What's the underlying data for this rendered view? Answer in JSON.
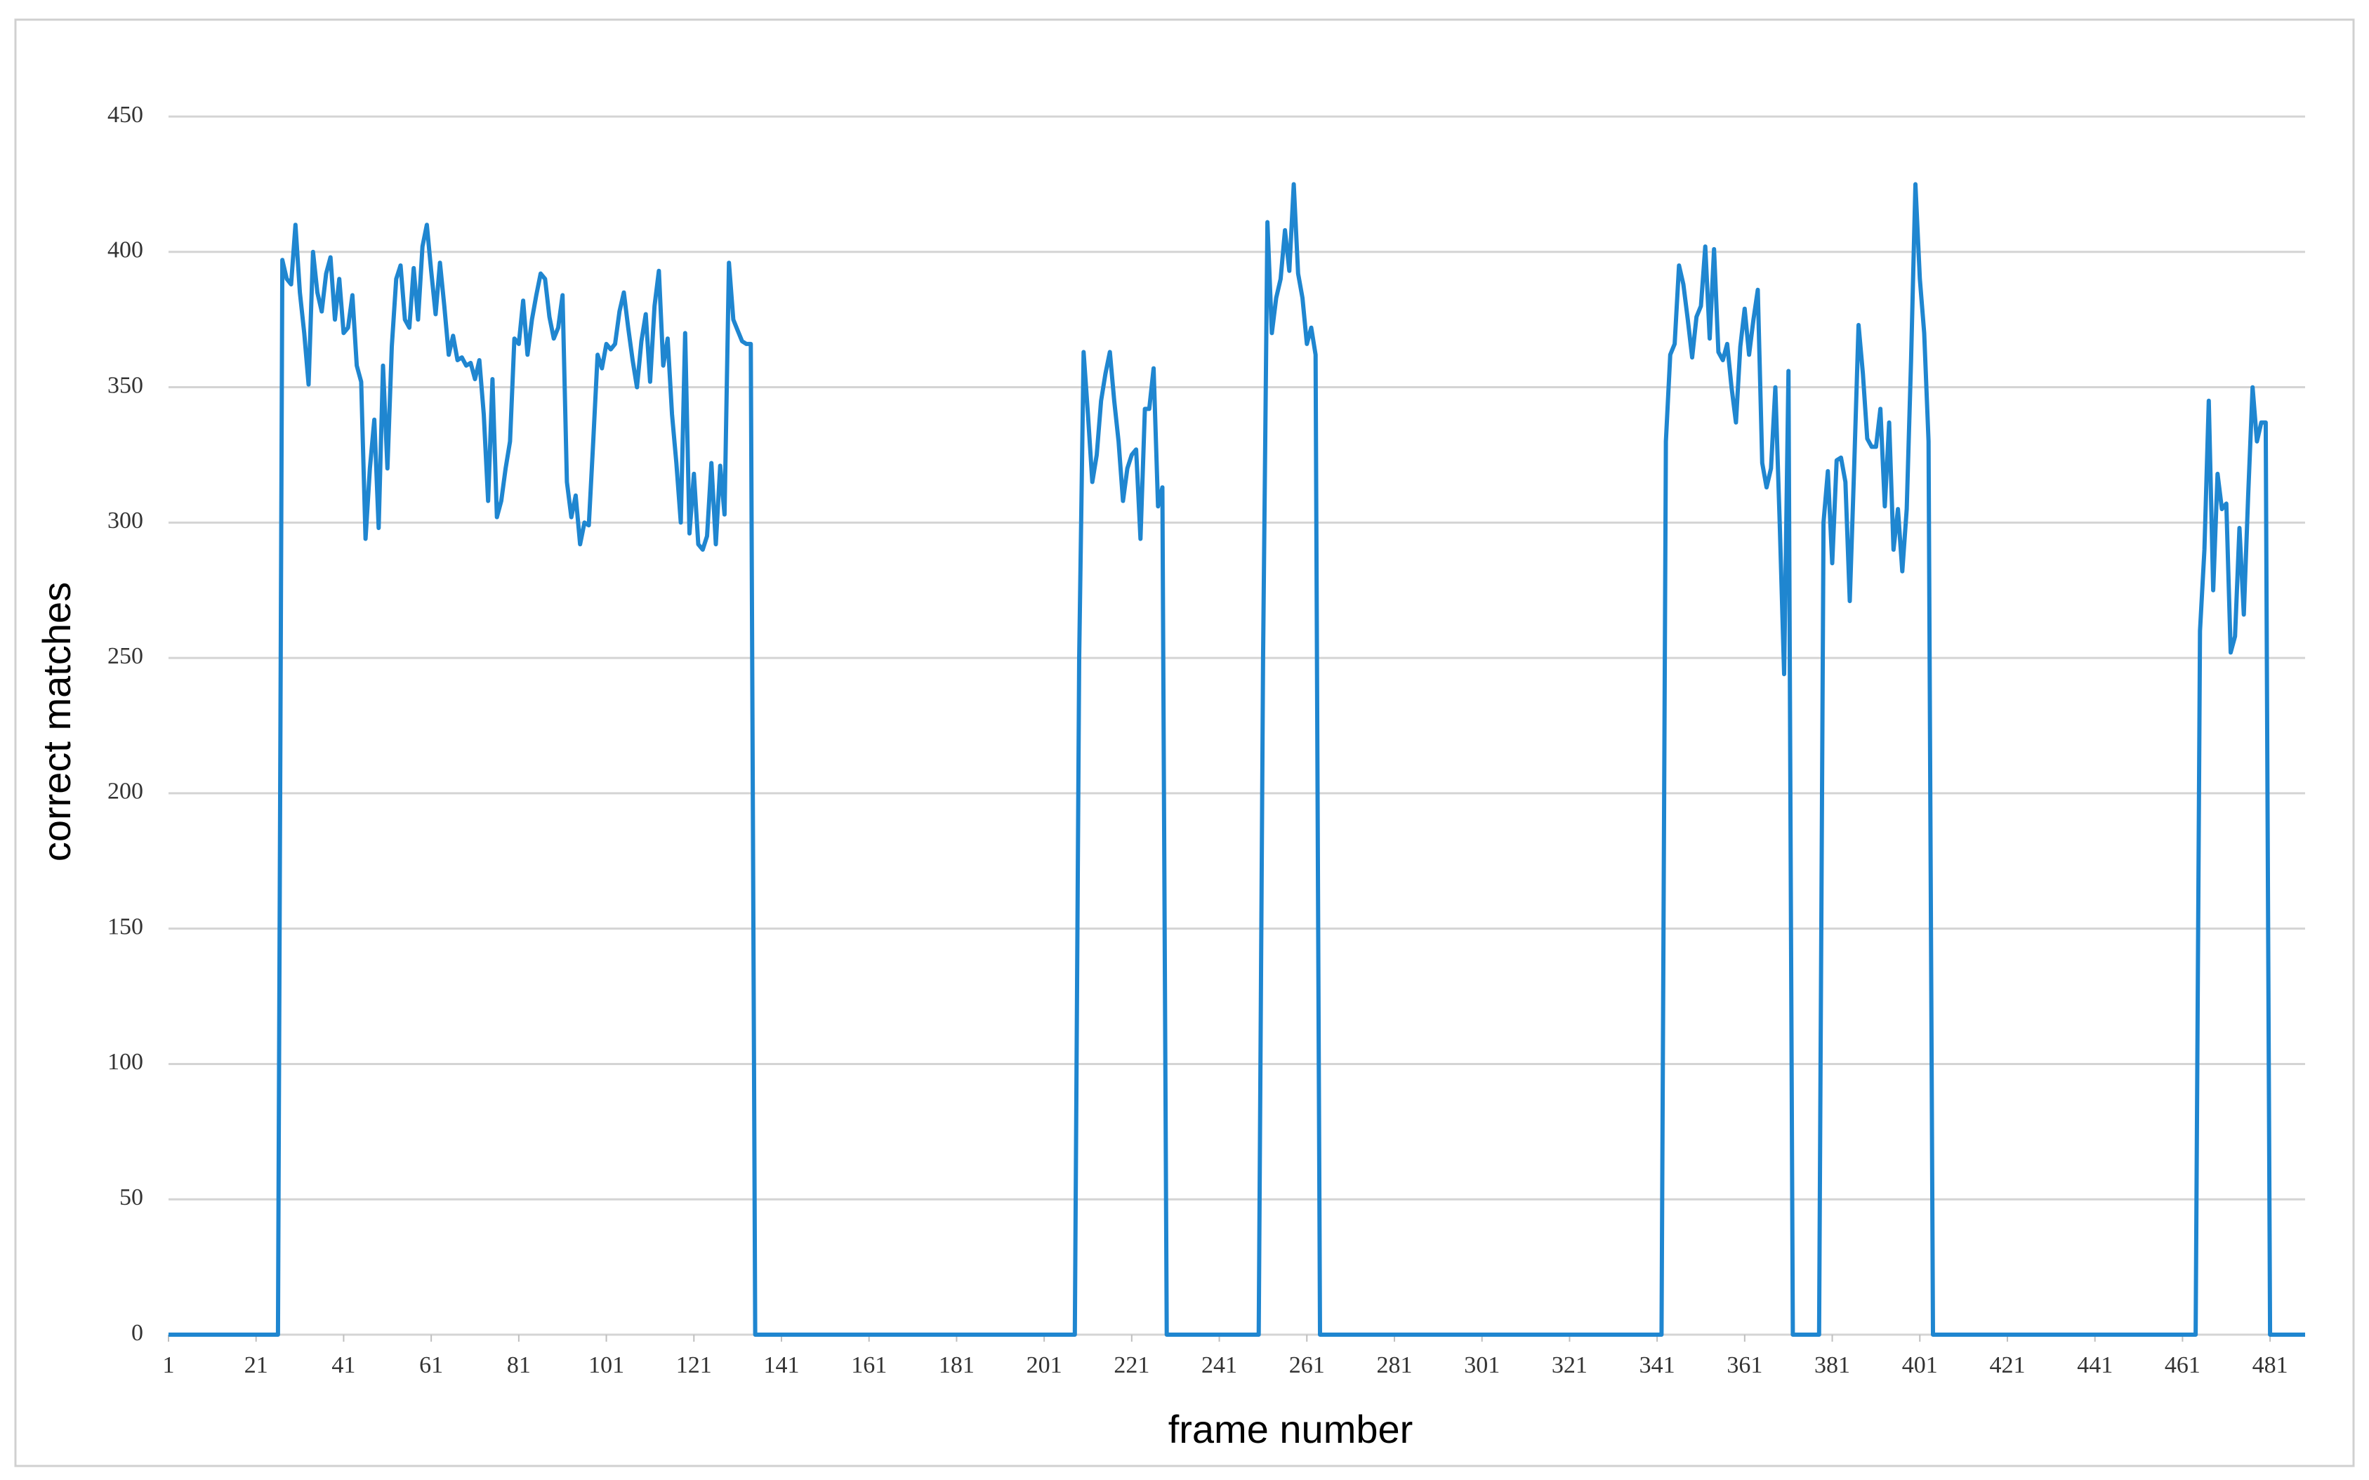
{
  "chart_data": {
    "type": "line",
    "xlabel": "frame number",
    "ylabel": "correct matches",
    "xlim": [
      1,
      489
    ],
    "ylim": [
      0,
      450
    ],
    "xticks": [
      1,
      21,
      41,
      61,
      81,
      101,
      121,
      141,
      161,
      181,
      201,
      221,
      241,
      261,
      281,
      301,
      321,
      341,
      361,
      381,
      401,
      421,
      441,
      461,
      481
    ],
    "yticks": [
      0,
      50,
      100,
      150,
      200,
      250,
      300,
      350,
      400,
      450
    ],
    "grid": true,
    "x": [
      1,
      26,
      27,
      28,
      29,
      30,
      31,
      32,
      33,
      34,
      35,
      36,
      37,
      38,
      39,
      40,
      41,
      42,
      43,
      44,
      45,
      46,
      47,
      48,
      49,
      50,
      51,
      52,
      53,
      54,
      55,
      56,
      57,
      58,
      59,
      60,
      61,
      62,
      63,
      64,
      65,
      66,
      67,
      68,
      69,
      70,
      71,
      72,
      73,
      74,
      75,
      76,
      77,
      78,
      79,
      80,
      81,
      82,
      83,
      84,
      85,
      86,
      87,
      88,
      89,
      90,
      91,
      92,
      93,
      94,
      95,
      96,
      97,
      98,
      99,
      100,
      101,
      102,
      103,
      104,
      105,
      106,
      107,
      108,
      109,
      110,
      111,
      112,
      113,
      114,
      115,
      116,
      117,
      118,
      119,
      120,
      121,
      122,
      123,
      124,
      125,
      126,
      127,
      128,
      129,
      130,
      131,
      132,
      133,
      134,
      135,
      208,
      209,
      210,
      211,
      212,
      213,
      214,
      215,
      216,
      217,
      218,
      219,
      220,
      221,
      222,
      223,
      224,
      225,
      226,
      227,
      228,
      229,
      250,
      251,
      252,
      253,
      254,
      255,
      256,
      257,
      258,
      259,
      260,
      261,
      262,
      263,
      264,
      342,
      343,
      344,
      345,
      346,
      347,
      348,
      349,
      350,
      351,
      352,
      353,
      354,
      355,
      356,
      357,
      358,
      359,
      360,
      361,
      362,
      363,
      364,
      365,
      366,
      367,
      368,
      369,
      370,
      371,
      372,
      378,
      379,
      380,
      381,
      382,
      383,
      384,
      385,
      386,
      387,
      388,
      389,
      390,
      391,
      392,
      393,
      394,
      395,
      396,
      397,
      398,
      399,
      400,
      401,
      402,
      403,
      404,
      464,
      465,
      466,
      467,
      468,
      469,
      470,
      471,
      472,
      473,
      474,
      475,
      476,
      477,
      478,
      479,
      480,
      481,
      489
    ],
    "series": [
      {
        "color": "#1f86d0",
        "values": [
          0,
          0,
          397,
          390,
          388,
          410,
          385,
          370,
          351,
          400,
          385,
          378,
          392,
          398,
          375,
          390,
          370,
          372,
          384,
          358,
          352,
          294,
          320,
          338,
          298,
          358,
          320,
          365,
          390,
          395,
          375,
          372,
          394,
          375,
          402,
          410,
          393,
          377,
          396,
          380,
          362,
          369,
          360,
          361,
          358,
          359,
          353,
          360,
          340,
          308,
          353,
          302,
          308,
          320,
          330,
          368,
          366,
          382,
          362,
          375,
          384,
          392,
          390,
          376,
          368,
          372,
          384,
          315,
          302,
          310,
          292,
          300,
          299,
          330,
          362,
          357,
          366,
          364,
          366,
          378,
          385,
          372,
          360,
          350,
          367,
          377,
          352,
          380,
          393,
          358,
          368,
          340,
          322,
          300,
          370,
          296,
          318,
          292,
          290,
          295,
          322,
          292,
          321,
          303,
          396,
          375,
          371,
          367,
          366,
          366,
          0,
          0,
          250,
          363,
          340,
          315,
          325,
          345,
          355,
          363,
          345,
          330,
          308,
          320,
          325,
          327,
          294,
          342,
          342,
          357,
          306,
          313,
          0,
          0,
          250,
          411,
          370,
          383,
          390,
          408,
          393,
          425,
          392,
          383,
          366,
          372,
          362,
          0,
          0,
          330,
          362,
          366,
          395,
          388,
          375,
          361,
          376,
          380,
          402,
          368,
          401,
          363,
          360,
          366,
          350,
          337,
          365,
          379,
          362,
          375,
          386,
          322,
          313,
          320,
          350,
          300,
          244,
          356,
          0,
          0,
          300,
          319,
          285,
          323,
          324,
          315,
          271,
          320,
          373,
          355,
          331,
          328,
          328,
          342,
          306,
          337,
          290,
          305,
          282,
          305,
          360,
          425,
          390,
          370,
          330,
          0,
          0,
          260,
          290,
          345,
          275,
          318,
          305,
          307,
          252,
          258,
          298,
          266,
          310,
          350,
          330,
          337,
          337,
          0,
          0
        ]
      }
    ]
  }
}
